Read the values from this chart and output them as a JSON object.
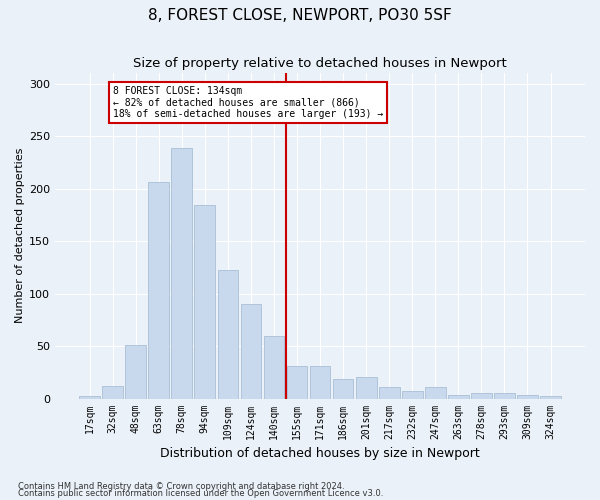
{
  "title": "8, FOREST CLOSE, NEWPORT, PO30 5SF",
  "subtitle": "Size of property relative to detached houses in Newport",
  "xlabel": "Distribution of detached houses by size in Newport",
  "ylabel": "Number of detached properties",
  "footnote1": "Contains HM Land Registry data © Crown copyright and database right 2024.",
  "footnote2": "Contains public sector information licensed under the Open Government Licence v3.0.",
  "bar_labels": [
    "17sqm",
    "32sqm",
    "48sqm",
    "63sqm",
    "78sqm",
    "94sqm",
    "109sqm",
    "124sqm",
    "140sqm",
    "155sqm",
    "171sqm",
    "186sqm",
    "201sqm",
    "217sqm",
    "232sqm",
    "247sqm",
    "263sqm",
    "278sqm",
    "293sqm",
    "309sqm",
    "324sqm"
  ],
  "bar_values": [
    2,
    12,
    51,
    206,
    239,
    184,
    122,
    90,
    60,
    31,
    31,
    19,
    21,
    11,
    7,
    11,
    3,
    5,
    5,
    3,
    2
  ],
  "bar_color": "#c8d9ed",
  "bar_edge_color": "#a0b8d0",
  "vline_x": 8.5,
  "vline_color": "#cc0000",
  "annotation_text": "8 FOREST CLOSE: 134sqm\n← 82% of detached houses are smaller (866)\n18% of semi-detached houses are larger (193) →",
  "annotation_box_color": "#cc0000",
  "annotation_box_fill": "#ffffff",
  "ylim": [
    0,
    310
  ],
  "yticks": [
    0,
    50,
    100,
    150,
    200,
    250,
    300
  ],
  "background_color": "#eaf1f8",
  "grid_color": "#ffffff",
  "title_fontsize": 11,
  "subtitle_fontsize": 9.5,
  "xlabel_fontsize": 9,
  "ylabel_fontsize": 8,
  "tick_fontsize": 7,
  "footnote_fontsize": 6
}
